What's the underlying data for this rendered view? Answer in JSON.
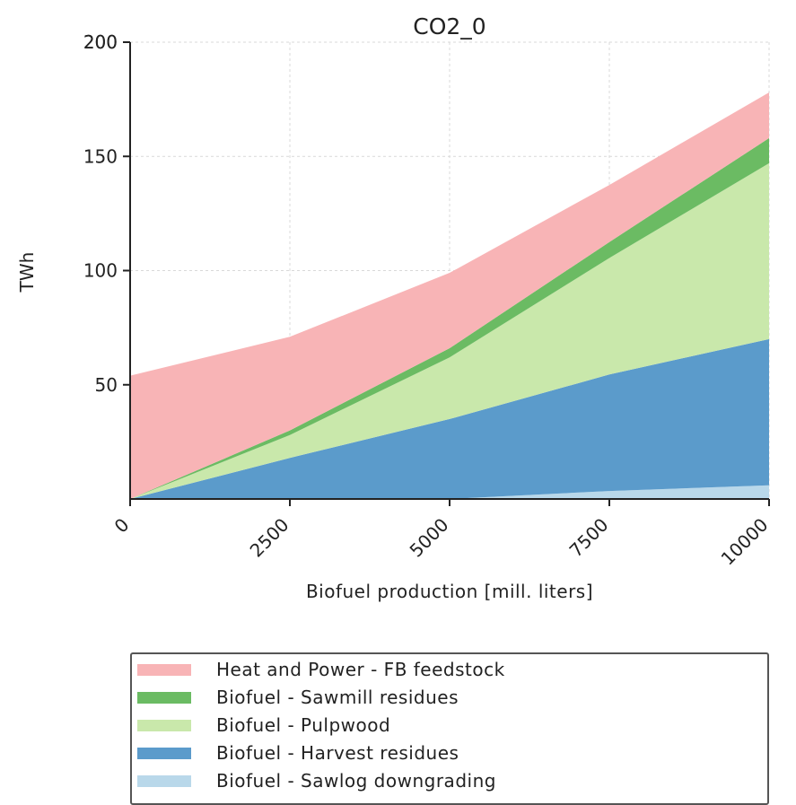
{
  "chart_data": {
    "type": "area",
    "stacked": true,
    "title": "CO2_0",
    "xlabel": "Biofuel production [mill. liters]",
    "ylabel": "TWh",
    "x": [
      0,
      2500,
      5000,
      7500,
      10000
    ],
    "x_tick_labels": [
      "0",
      "2500",
      "5000",
      "7500",
      "10000"
    ],
    "y_ticks": [
      50,
      100,
      150,
      200
    ],
    "y_tick_labels": [
      "50",
      "100",
      "150",
      "200"
    ],
    "xlim": [
      0,
      10000
    ],
    "ylim": [
      0,
      200
    ],
    "grid": true,
    "legend_position": "bottom",
    "series": [
      {
        "name": "Biofuel - Sawlog downgrading",
        "color": "#b9d8ea",
        "values": [
          0,
          0,
          0,
          3.5,
          6
        ]
      },
      {
        "name": "Biofuel - Harvest residues",
        "color": "#5b9bcb",
        "values": [
          0,
          18,
          35,
          51,
          64
        ]
      },
      {
        "name": "Biofuel - Pulpwood",
        "color": "#c9e8ab",
        "values": [
          0,
          10,
          27,
          51,
          77
        ]
      },
      {
        "name": "Biofuel - Sawmill residues",
        "color": "#6bbb63",
        "values": [
          0,
          2,
          4,
          7,
          11
        ]
      },
      {
        "name": "Heat and Power - FB feedstock",
        "color": "#f8b4b6",
        "values": [
          54,
          41,
          33,
          25,
          20
        ]
      }
    ],
    "legend_order": [
      4,
      3,
      2,
      1,
      0
    ]
  }
}
